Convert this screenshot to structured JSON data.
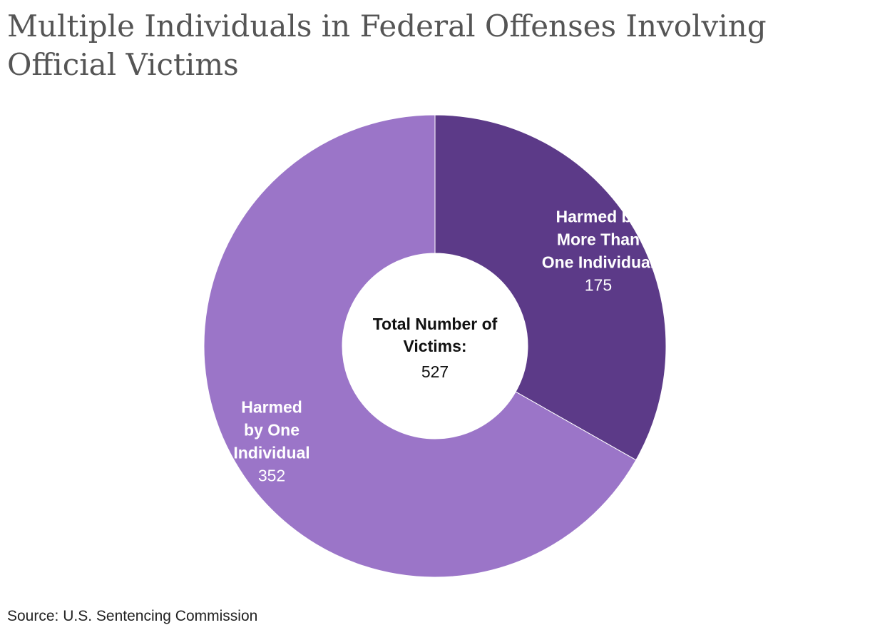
{
  "title": "Multiple Individuals in Federal Offenses Involving Official Victims",
  "source": "Source: U.S. Sentencing Commission",
  "chart_data": {
    "type": "pie",
    "variant": "donut",
    "center_label": {
      "lines": [
        "Total Number of",
        "Victims:"
      ],
      "value": "527"
    },
    "slices": [
      {
        "label_lines": [
          "Harmed by",
          "More Than",
          "One Individual"
        ],
        "value": 175,
        "value_text": "175",
        "color": "#5c3a88"
      },
      {
        "label_lines": [
          "Harmed",
          "by One",
          "Individual"
        ],
        "value": 352,
        "value_text": "352",
        "color": "#9b75c8"
      }
    ],
    "legend": "none"
  }
}
